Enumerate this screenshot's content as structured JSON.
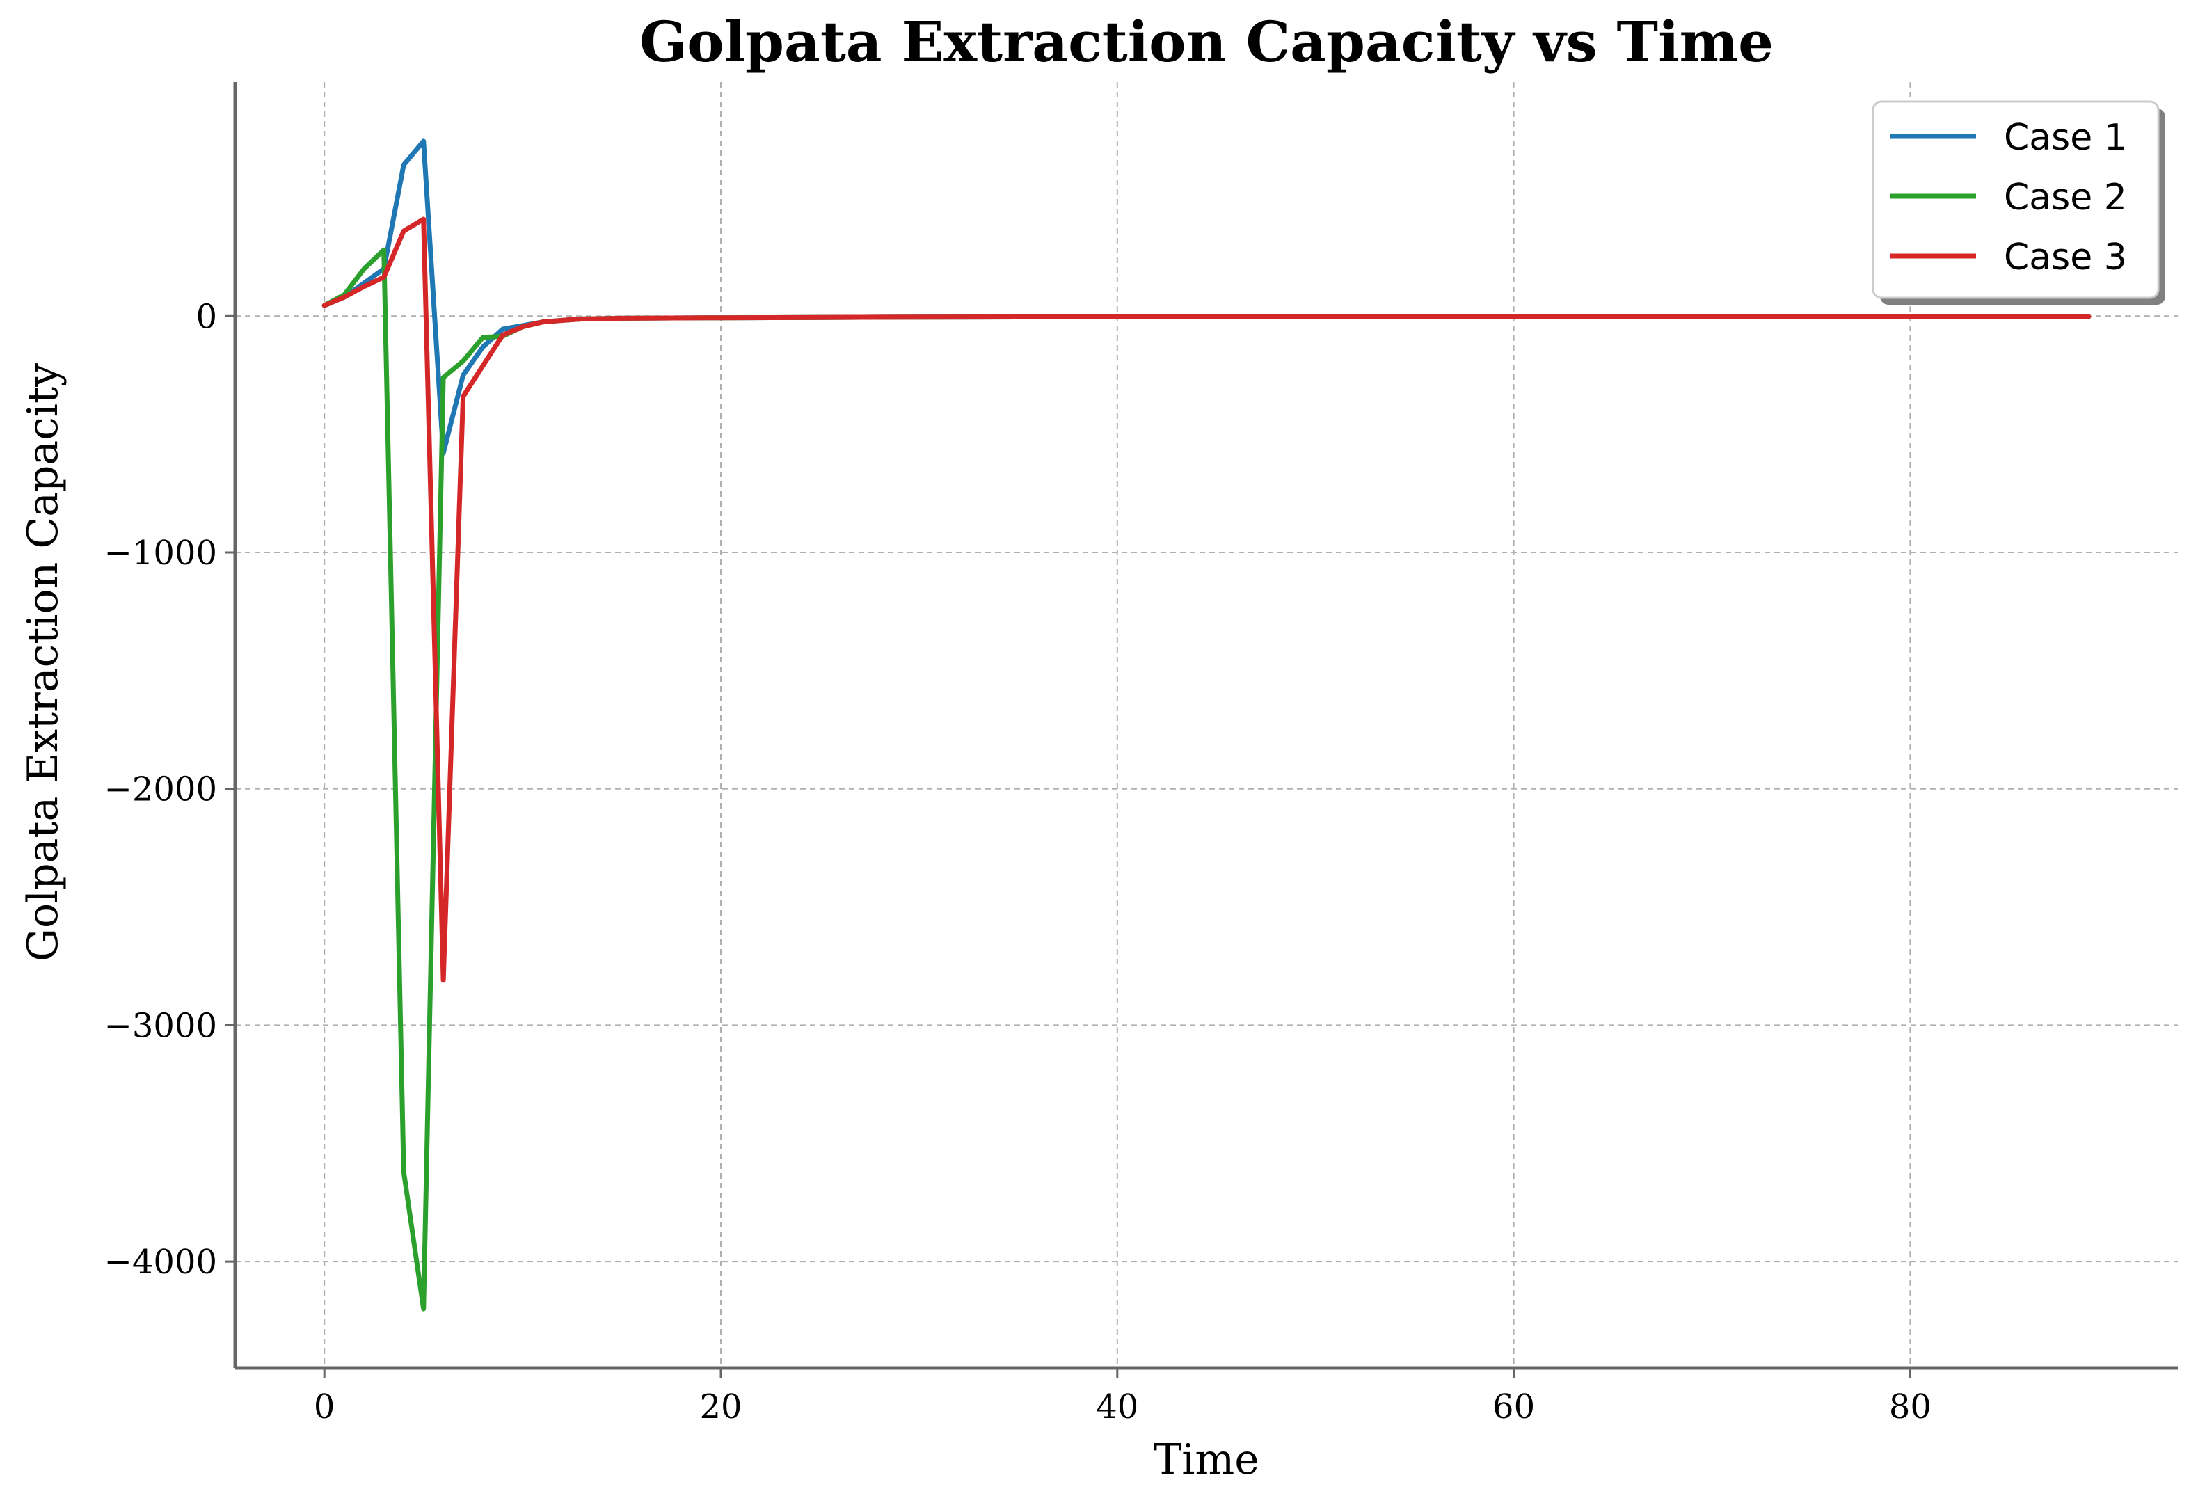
{
  "chart_data": {
    "type": "line",
    "title": "Golpata Extraction Capacity vs Time",
    "xlabel": "Time",
    "ylabel": "Golpata Extraction Capacity",
    "xlim": [
      -4.5,
      93.5
    ],
    "ylim": [
      -4450,
      990
    ],
    "xticks": [
      0,
      20,
      40,
      60,
      80
    ],
    "yticks": [
      0,
      -1000,
      -2000,
      -3000,
      -4000
    ],
    "grid": true,
    "legend": "top-right",
    "series": [
      {
        "name": "Case 1",
        "color": "#1f77b4",
        "points": [
          [
            0,
            45
          ],
          [
            1,
            80
          ],
          [
            2,
            140
          ],
          [
            3,
            200
          ],
          [
            4,
            640
          ],
          [
            5,
            740
          ],
          [
            6,
            -580
          ],
          [
            7,
            -250
          ],
          [
            8,
            -130
          ],
          [
            9,
            -55
          ],
          [
            10,
            -40
          ],
          [
            11,
            -25
          ],
          [
            12,
            -18
          ],
          [
            13,
            -12
          ],
          [
            15,
            -9
          ],
          [
            20,
            -7
          ],
          [
            30,
            -4
          ],
          [
            40,
            -3
          ],
          [
            60,
            -2
          ],
          [
            89,
            -2
          ]
        ]
      },
      {
        "name": "Case 2",
        "color": "#2ca02c",
        "points": [
          [
            0,
            45
          ],
          [
            1,
            90
          ],
          [
            2,
            200
          ],
          [
            3,
            280
          ],
          [
            4,
            -3620
          ],
          [
            5,
            -4200
          ],
          [
            6,
            -260
          ],
          [
            7,
            -190
          ],
          [
            8,
            -90
          ],
          [
            9,
            -85
          ],
          [
            10,
            -45
          ],
          [
            11,
            -25
          ],
          [
            12,
            -18
          ],
          [
            13,
            -12
          ],
          [
            15,
            -9
          ],
          [
            20,
            -7
          ],
          [
            30,
            -4
          ],
          [
            40,
            -3
          ],
          [
            60,
            -2
          ],
          [
            89,
            -2
          ]
        ]
      },
      {
        "name": "Case 3",
        "color": "#d62728",
        "points": [
          [
            0,
            45
          ],
          [
            1,
            80
          ],
          [
            2,
            125
          ],
          [
            3,
            165
          ],
          [
            4,
            360
          ],
          [
            5,
            410
          ],
          [
            6,
            -2810
          ],
          [
            7,
            -340
          ],
          [
            8,
            -210
          ],
          [
            9,
            -80
          ],
          [
            10,
            -45
          ],
          [
            11,
            -25
          ],
          [
            12,
            -18
          ],
          [
            13,
            -12
          ],
          [
            15,
            -9
          ],
          [
            20,
            -7
          ],
          [
            30,
            -4
          ],
          [
            40,
            -3
          ],
          [
            60,
            -2
          ],
          [
            89,
            -2
          ]
        ]
      }
    ]
  }
}
